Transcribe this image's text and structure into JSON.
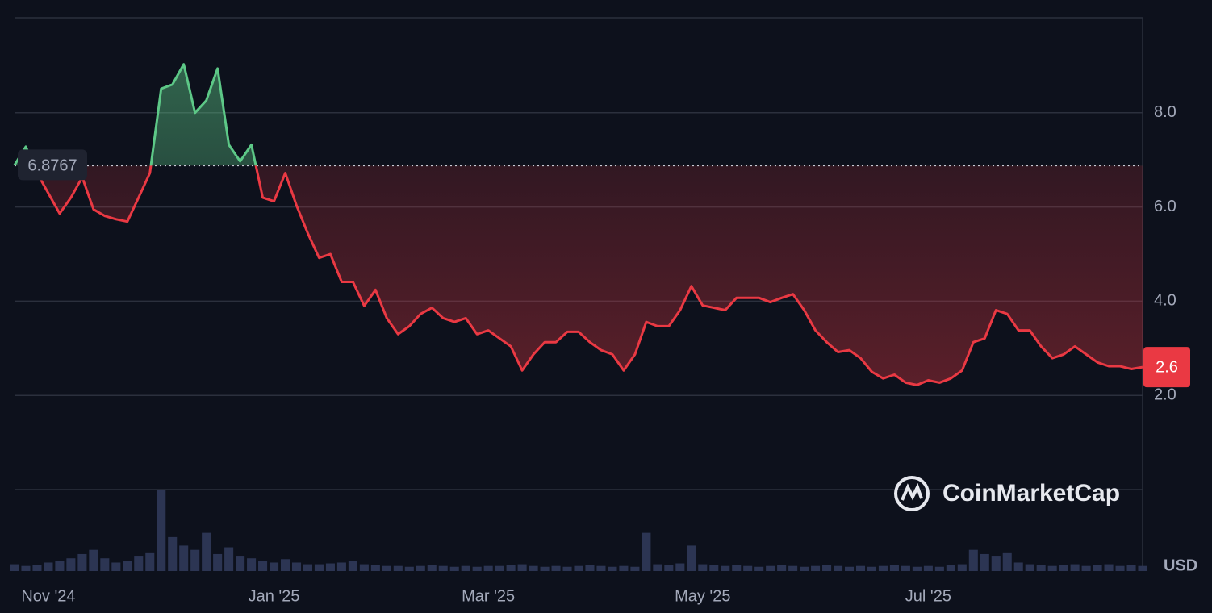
{
  "chart_data": {
    "type": "line",
    "values": [
      6.89,
      7.28,
      6.72,
      6.29,
      5.86,
      6.2,
      6.63,
      5.95,
      5.81,
      5.74,
      5.69,
      6.2,
      6.72,
      8.51,
      8.6,
      9.03,
      8.0,
      8.26,
      8.94,
      7.32,
      6.97,
      7.32,
      6.2,
      6.12,
      6.72,
      6.03,
      5.44,
      4.92,
      5.0,
      4.41,
      4.41,
      3.9,
      4.24,
      3.64,
      3.3,
      3.47,
      3.73,
      3.86,
      3.64,
      3.56,
      3.64,
      3.3,
      3.38,
      3.21,
      3.04,
      2.53,
      2.87,
      3.13,
      3.13,
      3.35,
      3.35,
      3.13,
      2.96,
      2.87,
      2.53,
      2.87,
      3.56,
      3.47,
      3.47,
      3.81,
      4.32,
      3.91,
      3.86,
      3.81,
      4.07,
      4.07,
      4.07,
      3.98,
      4.07,
      4.15,
      3.81,
      3.38,
      3.13,
      2.92,
      2.96,
      2.79,
      2.5,
      2.36,
      2.44,
      2.27,
      2.22,
      2.32,
      2.27,
      2.36,
      2.53,
      3.13,
      3.21,
      3.81,
      3.73,
      3.38,
      3.38,
      3.04,
      2.79,
      2.87,
      3.04,
      2.87,
      2.7,
      2.62,
      2.62,
      2.56,
      2.6
    ],
    "volume": [
      8,
      6,
      7,
      10,
      12,
      15,
      20,
      25,
      15,
      10,
      12,
      18,
      22,
      95,
      40,
      30,
      25,
      45,
      20,
      28,
      18,
      15,
      12,
      10,
      14,
      10,
      8,
      8,
      9,
      10,
      12,
      8,
      7,
      6,
      6,
      5,
      6,
      7,
      6,
      5,
      6,
      5,
      6,
      6,
      7,
      8,
      6,
      5,
      6,
      5,
      6,
      7,
      6,
      5,
      6,
      5,
      45,
      8,
      7,
      9,
      30,
      8,
      7,
      6,
      7,
      6,
      5,
      6,
      7,
      6,
      5,
      6,
      7,
      6,
      5,
      6,
      5,
      6,
      7,
      6,
      5,
      6,
      5,
      7,
      8,
      25,
      20,
      18,
      22,
      10,
      8,
      7,
      6,
      7,
      8,
      6,
      7,
      8,
      6,
      7,
      6
    ],
    "baseline": 6.8767,
    "up_color": "#5dc887",
    "down_color": "#ea3943",
    "volume_color": "#2c3553",
    "xlim": [
      0,
      100
    ],
    "ylim": [
      0,
      10
    ],
    "yticks": [
      {
        "value": 2,
        "label": "2.0"
      },
      {
        "value": 4,
        "label": "4.0"
      },
      {
        "value": 6,
        "label": "6.0"
      },
      {
        "value": 8,
        "label": "8.0"
      }
    ],
    "xticks": [
      {
        "value": 3,
        "label": "Nov '24"
      },
      {
        "value": 23,
        "label": "Jan '25"
      },
      {
        "value": 42,
        "label": "Mar '25"
      },
      {
        "value": 61,
        "label": "May '25"
      },
      {
        "value": 81,
        "label": "Jul '25"
      }
    ],
    "grid": true,
    "currency": "USD",
    "watermark": "CoinMarketCap"
  }
}
